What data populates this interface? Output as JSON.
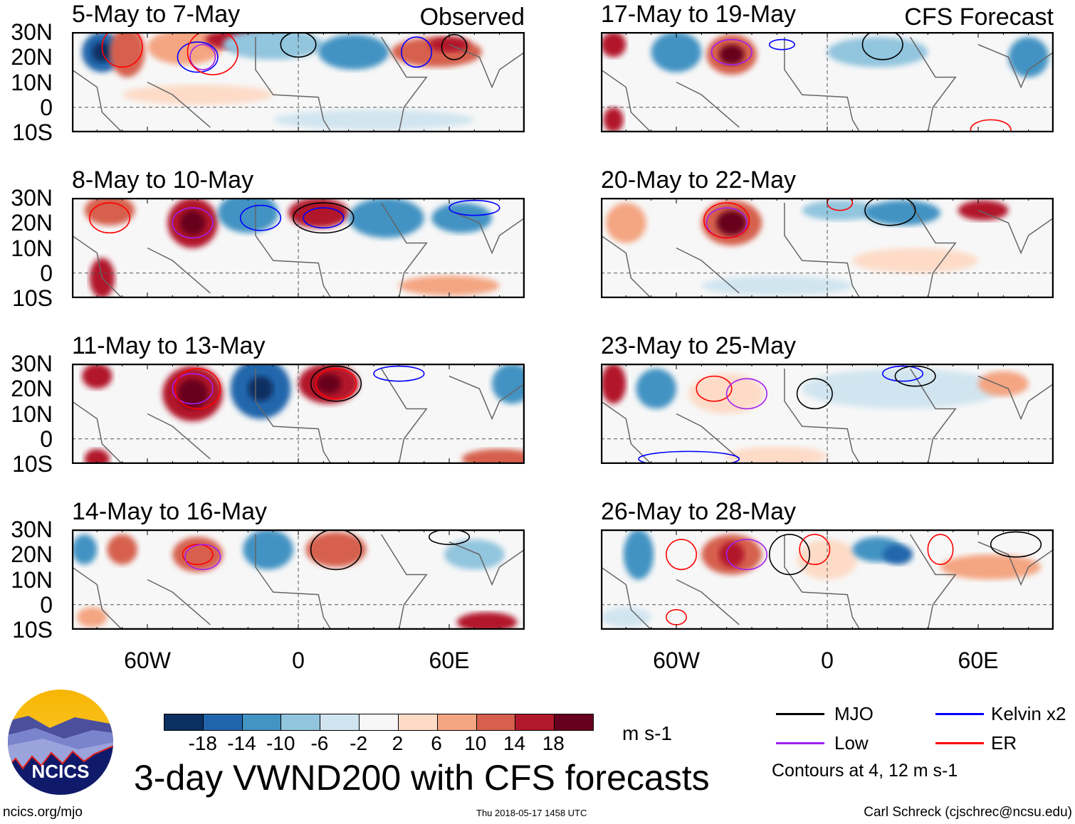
{
  "panels": [
    {
      "title": "5-May to 7-May",
      "label": "Observed",
      "column": "left"
    },
    {
      "title": "8-May to 10-May",
      "label": "",
      "column": "left"
    },
    {
      "title": "11-May to 13-May",
      "label": "",
      "column": "left"
    },
    {
      "title": "14-May to 16-May",
      "label": "",
      "column": "left"
    },
    {
      "title": "17-May to 19-May",
      "label": "CFS Forecast",
      "column": "right"
    },
    {
      "title": "20-May to 22-May",
      "label": "",
      "column": "right"
    },
    {
      "title": "23-May to 25-May",
      "label": "",
      "column": "right"
    },
    {
      "title": "26-May to 28-May",
      "label": "",
      "column": "right"
    }
  ],
  "lat_labels": [
    "30N",
    "20N",
    "10N",
    "0",
    "10S"
  ],
  "lon_labels": [
    "60W",
    "0",
    "60E"
  ],
  "colorbar": {
    "ticks": [
      "-18",
      "-14",
      "-10",
      "-6",
      "-2",
      "2",
      "6",
      "10",
      "14",
      "18"
    ],
    "colors": [
      "#0b2f60",
      "#2166ac",
      "#4393c3",
      "#92c5de",
      "#d1e5f0",
      "#f7f7f7",
      "#fddbc7",
      "#f4a582",
      "#d6604d",
      "#b2182b",
      "#67001f"
    ],
    "units": "m s-1"
  },
  "title": "3-day VWND200 with CFS forecasts",
  "legend": {
    "items": [
      {
        "label": "MJO",
        "color": "#000000"
      },
      {
        "label": "Kelvin x2",
        "color": "#0000ff"
      },
      {
        "label": "Low",
        "color": "#a020f0"
      },
      {
        "label": "ER",
        "color": "#ff0000"
      }
    ],
    "note": "Contours at 4, 12 m s-1"
  },
  "logo": {
    "text": "NCICS"
  },
  "footer": {
    "url": "ncics.org/mjo",
    "timestamp": "Thu 2018-05-17 1458 UTC",
    "author": "Carl Schreck (cjschrec@ncsu.edu)"
  }
}
